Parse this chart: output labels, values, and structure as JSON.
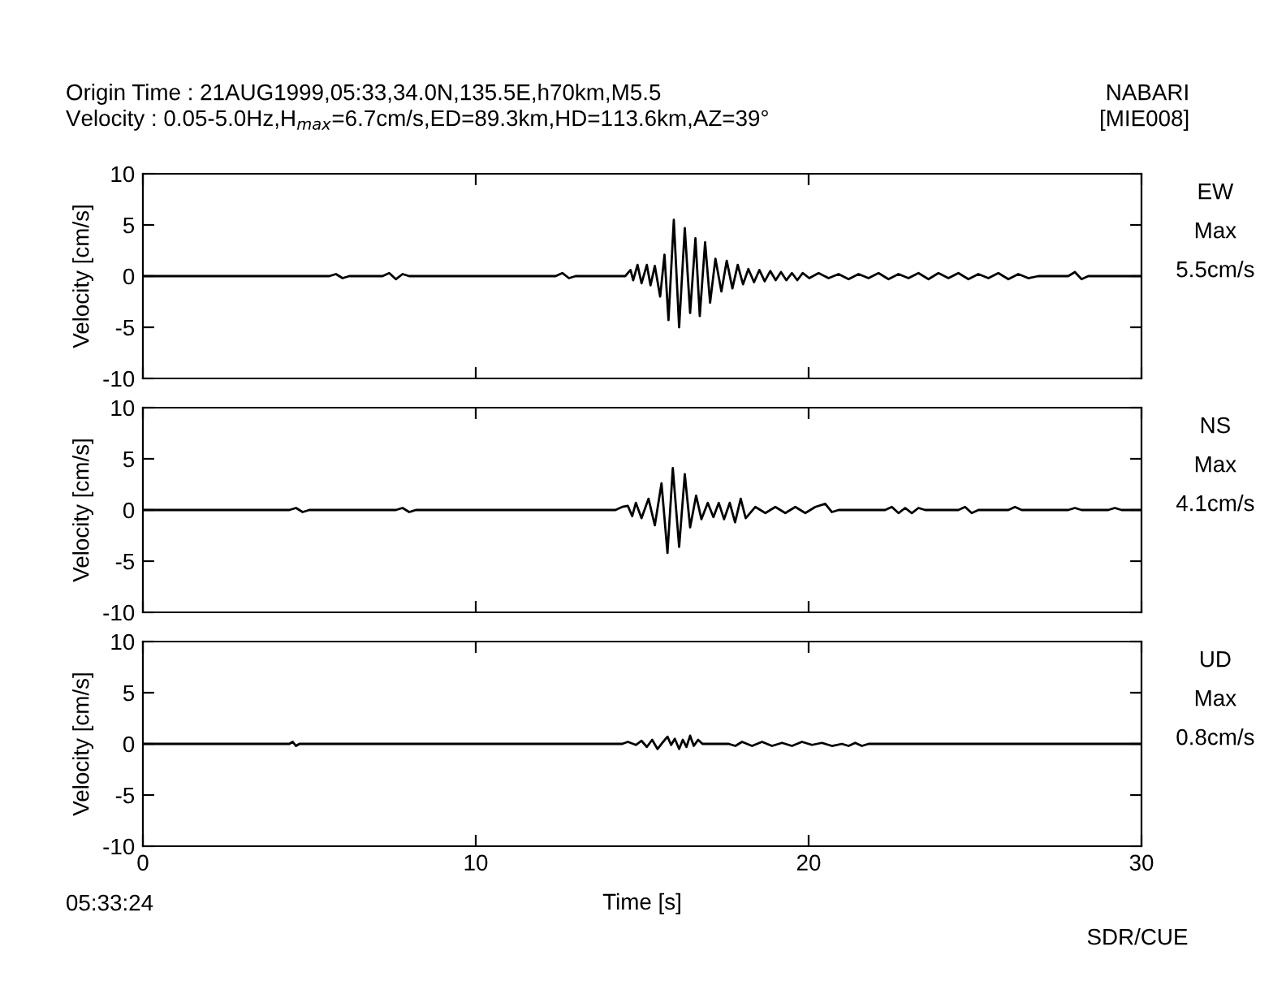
{
  "chart_data": [
    {
      "type": "line",
      "title": "Origin Time : 21AUG1999,05:33,34.0N,135.5E,h70km,M5.5",
      "subtitle": "Velocity : 0.05-5.0Hz,H$_{max}$=6.7cm/s,ED=89.3km,HD=113.6km,AZ=39°",
      "ylabel": "Velocity [cm/s]",
      "annotations": [
        "NABARI",
        "[MIE008]",
        "EW",
        "Max",
        "5.5cm/s"
      ],
      "xlim": [
        0,
        30
      ],
      "xticks": [
        0,
        10,
        20,
        30
      ],
      "ylim": [
        -10,
        10
      ],
      "yticks": [
        -10,
        -5,
        0,
        5,
        10
      ],
      "tick_labels": "y",
      "grid": false,
      "legend": false,
      "marker": "none",
      "line_style": "solid",
      "series": [
        {
          "color": "#000000",
          "x": [
            0,
            5.6,
            5.8,
            6.0,
            6.2,
            7.2,
            7.4,
            7.6,
            7.8,
            8.0,
            12.4,
            12.6,
            12.8,
            13.0,
            14.49,
            14.65,
            14.73,
            14.86,
            14.98,
            15.14,
            15.25,
            15.38,
            15.54,
            15.67,
            15.79,
            15.95,
            16.11,
            16.28,
            16.44,
            16.6,
            16.73,
            16.89,
            17.04,
            17.2,
            17.38,
            17.54,
            17.71,
            17.87,
            18.03,
            18.19,
            18.36,
            18.52,
            18.68,
            18.85,
            19.01,
            19.17,
            19.33,
            19.5,
            19.66,
            19.82,
            20.02,
            20.3,
            20.6,
            20.9,
            21.2,
            21.5,
            21.8,
            22.1,
            22.4,
            22.7,
            23.0,
            23.3,
            23.6,
            23.9,
            24.2,
            24.5,
            24.8,
            25.1,
            25.4,
            25.7,
            26.0,
            26.3,
            26.6,
            26.9,
            27.8,
            28.0,
            28.2,
            28.4,
            30
          ],
          "values": [
            0,
            0,
            0.2,
            -0.2,
            0,
            0,
            0.3,
            -0.3,
            0.2,
            0,
            0,
            0.3,
            -0.2,
            0,
            0,
            0.6,
            -0.4,
            1.1,
            -0.7,
            1.1,
            -0.9,
            1.0,
            -2.0,
            2.1,
            -4.3,
            5.5,
            -5.0,
            4.7,
            -3.6,
            3.7,
            -3.9,
            3.3,
            -2.6,
            1.7,
            -1.5,
            1.5,
            -1.2,
            1.1,
            -0.8,
            0.7,
            -0.6,
            0.6,
            -0.5,
            0.5,
            -0.4,
            0.4,
            -0.4,
            0.3,
            -0.4,
            0.3,
            -0.2,
            0.3,
            -0.2,
            0.2,
            -0.3,
            0.2,
            -0.2,
            0.3,
            -0.3,
            0.2,
            -0.2,
            0.3,
            -0.3,
            0.3,
            -0.2,
            0.3,
            -0.3,
            0.2,
            -0.2,
            0.3,
            -0.3,
            0.2,
            -0.2,
            0,
            0,
            0.4,
            -0.3,
            0,
            0
          ]
        }
      ]
    },
    {
      "type": "line",
      "ylabel": "Velocity [cm/s]",
      "annotations": [
        "NS",
        "Max",
        "4.1cm/s"
      ],
      "xlim": [
        0,
        30
      ],
      "xticks": [
        0,
        10,
        20,
        30
      ],
      "ylim": [
        -10,
        10
      ],
      "yticks": [
        -10,
        -5,
        0,
        5,
        10
      ],
      "tick_labels": "y",
      "grid": false,
      "legend": false,
      "marker": "none",
      "line_style": "solid",
      "series": [
        {
          "color": "#000000",
          "x": [
            0,
            4.4,
            4.6,
            4.8,
            5.0,
            7.6,
            7.8,
            8.0,
            8.2,
            14.2,
            14.4,
            14.57,
            14.7,
            14.81,
            14.98,
            15.19,
            15.38,
            15.58,
            15.76,
            15.92,
            16.11,
            16.28,
            16.44,
            16.62,
            16.78,
            16.97,
            17.14,
            17.3,
            17.46,
            17.63,
            17.79,
            17.96,
            18.11,
            18.4,
            18.7,
            19.0,
            19.3,
            19.6,
            19.9,
            20.2,
            20.5,
            20.7,
            20.9,
            22.3,
            22.5,
            22.7,
            22.9,
            23.1,
            23.3,
            23.5,
            24.5,
            24.7,
            24.9,
            25.1,
            26.0,
            26.2,
            26.4,
            27.8,
            28.0,
            28.2,
            29.0,
            29.2,
            29.4,
            30
          ],
          "values": [
            0,
            0,
            0.2,
            -0.2,
            0,
            0,
            0.2,
            -0.2,
            0,
            0,
            0.3,
            0.4,
            -0.6,
            0.7,
            -0.8,
            1.1,
            -1.5,
            2.6,
            -4.2,
            4.1,
            -3.6,
            3.5,
            -1.7,
            1.4,
            -0.9,
            0.7,
            -0.7,
            0.7,
            -0.9,
            0.7,
            -1.2,
            1.1,
            -0.8,
            0.3,
            -0.3,
            0.3,
            -0.3,
            0.3,
            -0.3,
            0.3,
            0.6,
            -0.2,
            0,
            0,
            0.3,
            -0.3,
            0.2,
            -0.3,
            0.2,
            0,
            0,
            0.3,
            -0.3,
            0,
            0,
            0.3,
            0,
            0,
            0.2,
            0,
            0,
            0.2,
            0,
            0
          ]
        }
      ]
    },
    {
      "type": "line",
      "xlabel": "Time [s]",
      "ylabel": "Velocity [cm/s]",
      "annotations": [
        "UD",
        "Max",
        "0.8cm/s",
        "05:33:24",
        "SDR/CUE"
      ],
      "xlim": [
        0,
        30
      ],
      "xticks": [
        0,
        10,
        20,
        30
      ],
      "ylim": [
        -10,
        10
      ],
      "yticks": [
        -10,
        -5,
        0,
        5,
        10
      ],
      "grid": false,
      "legend": false,
      "marker": "none",
      "line_style": "solid",
      "series": [
        {
          "color": "#000000",
          "x": [
            0,
            4.4,
            4.5,
            4.6,
            4.7,
            14.4,
            14.57,
            14.81,
            14.98,
            15.14,
            15.3,
            15.46,
            15.63,
            15.76,
            15.87,
            15.98,
            16.11,
            16.22,
            16.33,
            16.44,
            16.55,
            16.68,
            16.81,
            17.6,
            17.8,
            18.0,
            18.3,
            18.6,
            18.9,
            19.2,
            19.5,
            19.8,
            20.1,
            20.4,
            20.7,
            21.0,
            21.2,
            21.4,
            21.6,
            21.8,
            22.0,
            30
          ],
          "values": [
            0,
            0,
            0.2,
            -0.2,
            0,
            0,
            0.2,
            -0.1,
            0.3,
            -0.3,
            0.4,
            -0.5,
            0.2,
            0.7,
            -0.1,
            0.5,
            -0.5,
            0.4,
            -0.3,
            0.8,
            -0.2,
            0.4,
            0,
            0,
            -0.2,
            0.2,
            -0.2,
            0.2,
            -0.2,
            0.1,
            -0.2,
            0.2,
            -0.1,
            0.1,
            -0.2,
            0,
            -0.2,
            0.1,
            -0.2,
            0,
            0,
            0
          ]
        }
      ]
    }
  ]
}
